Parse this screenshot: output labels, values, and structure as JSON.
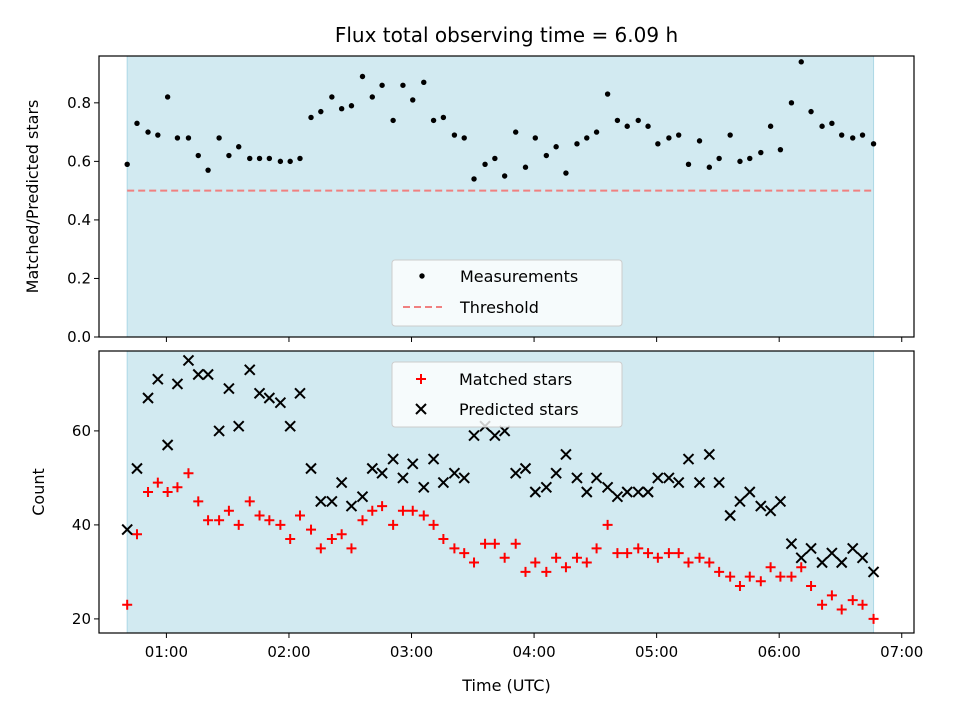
{
  "chart_data": [
    {
      "type": "scatter",
      "title": "Flux total observing time = 6.09 h",
      "ylabel": "Matched/Predicted stars",
      "xlabel": "",
      "x_unit": "hours UTC",
      "xlim": [
        0.45,
        7.1
      ],
      "ylim": [
        0,
        0.96
      ],
      "yticks": [
        0.0,
        0.2,
        0.4,
        0.6,
        0.8
      ],
      "ytick_labels": [
        "0.0",
        "0.2",
        "0.4",
        "0.6",
        "0.8"
      ],
      "shaded_span": [
        0.68,
        6.77
      ],
      "shade_color": "#add8e6",
      "legend_location": "lower center",
      "series": [
        {
          "name": "Measurements",
          "marker": "dot",
          "color": "#000000",
          "x": [
            0.68,
            0.76,
            0.85,
            0.93,
            1.01,
            1.09,
            1.18,
            1.26,
            1.34,
            1.43,
            1.51,
            1.59,
            1.68,
            1.76,
            1.84,
            1.93,
            2.01,
            2.09,
            2.18,
            2.26,
            2.35,
            2.43,
            2.51,
            2.6,
            2.68,
            2.76,
            2.85,
            2.93,
            3.01,
            3.1,
            3.18,
            3.26,
            3.35,
            3.43,
            3.51,
            3.6,
            3.68,
            3.76,
            3.85,
            3.93,
            4.01,
            4.1,
            4.18,
            4.26,
            4.35,
            4.43,
            4.51,
            4.6,
            4.68,
            4.76,
            4.85,
            4.93,
            5.01,
            5.1,
            5.18,
            5.26,
            5.35,
            5.43,
            5.51,
            5.6,
            5.68,
            5.76,
            5.85,
            5.93,
            6.01,
            6.1,
            6.18,
            6.26,
            6.35,
            6.43,
            6.51,
            6.6,
            6.68,
            6.77
          ],
          "y": [
            0.59,
            0.73,
            0.7,
            0.69,
            0.82,
            0.68,
            0.68,
            0.62,
            0.57,
            0.68,
            0.62,
            0.65,
            0.61,
            0.61,
            0.61,
            0.6,
            0.6,
            0.61,
            0.75,
            0.77,
            0.82,
            0.78,
            0.79,
            0.89,
            0.82,
            0.86,
            0.74,
            0.86,
            0.81,
            0.87,
            0.74,
            0.75,
            0.69,
            0.68,
            0.54,
            0.59,
            0.61,
            0.55,
            0.7,
            0.58,
            0.68,
            0.62,
            0.65,
            0.56,
            0.66,
            0.68,
            0.7,
            0.83,
            0.74,
            0.72,
            0.74,
            0.72,
            0.66,
            0.68,
            0.69,
            0.59,
            0.67,
            0.58,
            0.61,
            0.69,
            0.6,
            0.61,
            0.63,
            0.72,
            0.64,
            0.8,
            0.94,
            0.77,
            0.72,
            0.73,
            0.69,
            0.68,
            0.69,
            0.66
          ]
        },
        {
          "name": "Threshold",
          "marker": "dashed-line",
          "color": "#f08080",
          "x": [
            0.68,
            6.77
          ],
          "y": [
            0.5,
            0.5
          ]
        }
      ]
    },
    {
      "type": "scatter",
      "title": "",
      "ylabel": "Count",
      "xlabel": "Time (UTC)",
      "x_unit": "hours UTC",
      "xlim": [
        0.45,
        7.1
      ],
      "ylim": [
        17,
        77
      ],
      "yticks": [
        20,
        40,
        60
      ],
      "ytick_labels": [
        "20",
        "40",
        "60"
      ],
      "xticks": [
        1,
        2,
        3,
        4,
        5,
        6,
        7
      ],
      "xtick_labels": [
        "01:00",
        "02:00",
        "03:00",
        "04:00",
        "05:00",
        "06:00",
        "07:00"
      ],
      "shaded_span": [
        0.68,
        6.77
      ],
      "shade_color": "#add8e6",
      "legend_location": "upper center",
      "series": [
        {
          "name": "Matched stars",
          "marker": "plus",
          "color": "#ff0000",
          "x": [
            0.68,
            0.76,
            0.85,
            0.93,
            1.01,
            1.09,
            1.18,
            1.26,
            1.34,
            1.43,
            1.51,
            1.59,
            1.68,
            1.76,
            1.84,
            1.93,
            2.01,
            2.09,
            2.18,
            2.26,
            2.35,
            2.43,
            2.51,
            2.6,
            2.68,
            2.76,
            2.85,
            2.93,
            3.01,
            3.1,
            3.18,
            3.26,
            3.35,
            3.43,
            3.51,
            3.6,
            3.68,
            3.76,
            3.85,
            3.93,
            4.01,
            4.1,
            4.18,
            4.26,
            4.35,
            4.43,
            4.51,
            4.6,
            4.68,
            4.76,
            4.85,
            4.93,
            5.01,
            5.1,
            5.18,
            5.26,
            5.35,
            5.43,
            5.51,
            5.6,
            5.68,
            5.76,
            5.85,
            5.93,
            6.01,
            6.1,
            6.18,
            6.26,
            6.35,
            6.43,
            6.51,
            6.6,
            6.68,
            6.77
          ],
          "y": [
            23,
            38,
            47,
            49,
            47,
            48,
            51,
            45,
            41,
            41,
            43,
            40,
            45,
            42,
            41,
            40,
            37,
            42,
            39,
            35,
            37,
            38,
            35,
            41,
            43,
            44,
            40,
            43,
            43,
            42,
            40,
            37,
            35,
            34,
            32,
            36,
            36,
            33,
            36,
            30,
            32,
            30,
            33,
            31,
            33,
            32,
            35,
            40,
            34,
            34,
            35,
            34,
            33,
            34,
            34,
            32,
            33,
            32,
            30,
            29,
            27,
            29,
            28,
            31,
            29,
            29,
            31,
            27,
            23,
            25,
            22,
            24,
            23,
            20
          ]
        },
        {
          "name": "Predicted stars",
          "marker": "x",
          "color": "#000000",
          "x": [
            0.68,
            0.76,
            0.85,
            0.93,
            1.01,
            1.09,
            1.18,
            1.26,
            1.34,
            1.43,
            1.51,
            1.59,
            1.68,
            1.76,
            1.84,
            1.93,
            2.01,
            2.09,
            2.18,
            2.26,
            2.35,
            2.43,
            2.51,
            2.6,
            2.68,
            2.76,
            2.85,
            2.93,
            3.01,
            3.1,
            3.18,
            3.26,
            3.35,
            3.43,
            3.51,
            3.6,
            3.68,
            3.76,
            3.85,
            3.93,
            4.01,
            4.1,
            4.18,
            4.26,
            4.35,
            4.43,
            4.51,
            4.6,
            4.68,
            4.76,
            4.85,
            4.93,
            5.01,
            5.1,
            5.18,
            5.26,
            5.35,
            5.43,
            5.51,
            5.6,
            5.68,
            5.76,
            5.85,
            5.93,
            6.01,
            6.1,
            6.18,
            6.26,
            6.35,
            6.43,
            6.51,
            6.6,
            6.68,
            6.77
          ],
          "y": [
            39,
            52,
            67,
            71,
            57,
            70,
            75,
            72,
            72,
            60,
            69,
            61,
            73,
            68,
            67,
            66,
            61,
            68,
            52,
            45,
            45,
            49,
            44,
            46,
            52,
            51,
            54,
            50,
            53,
            48,
            54,
            49,
            51,
            50,
            59,
            61,
            59,
            60,
            51,
            52,
            47,
            48,
            51,
            55,
            50,
            47,
            50,
            48,
            46,
            47,
            47,
            47,
            50,
            50,
            49,
            54,
            49,
            55,
            49,
            42,
            45,
            47,
            44,
            43,
            45,
            36,
            33,
            35,
            32,
            34,
            32,
            35,
            33,
            30
          ]
        }
      ]
    }
  ]
}
